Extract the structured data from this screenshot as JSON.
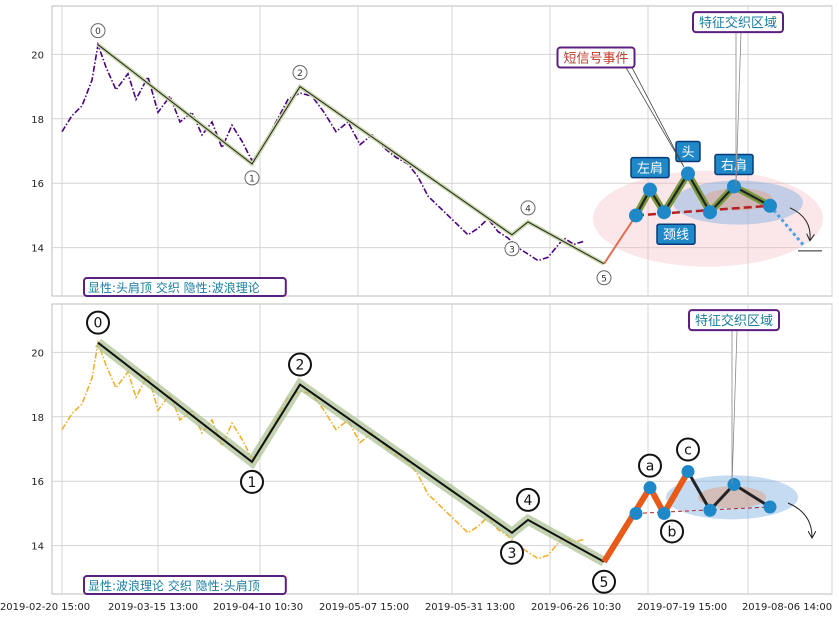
{
  "chart_data": [
    {
      "type": "line",
      "panel": "top",
      "annotation_label": "显性:头肩顶 交织 隐性:波浪理论",
      "ylim": [
        12.5,
        21.5
      ],
      "yticks": [
        14,
        16,
        18,
        20
      ],
      "grid": true,
      "price_color": "#4b0082",
      "price": [
        [
          0.5,
          17.6
        ],
        [
          1,
          18.1
        ],
        [
          1.5,
          18.4
        ],
        [
          2,
          19.2
        ],
        [
          2.3,
          20.3
        ],
        [
          2.7,
          19.6
        ],
        [
          3.2,
          18.9
        ],
        [
          3.8,
          19.4
        ],
        [
          4.2,
          18.6
        ],
        [
          4.8,
          19.3
        ],
        [
          5.3,
          18.2
        ],
        [
          5.9,
          18.7
        ],
        [
          6.4,
          17.9
        ],
        [
          7,
          18.2
        ],
        [
          7.5,
          17.5
        ],
        [
          8,
          17.9
        ],
        [
          8.5,
          17.1
        ],
        [
          9,
          17.8
        ],
        [
          9.5,
          17.3
        ],
        [
          10,
          16.7
        ],
        [
          10.5,
          17.1
        ],
        [
          11.2,
          17.9
        ],
        [
          11.8,
          18.6
        ],
        [
          12.4,
          18.8
        ],
        [
          13,
          18.7
        ],
        [
          13.6,
          18.2
        ],
        [
          14.2,
          17.6
        ],
        [
          14.8,
          17.9
        ],
        [
          15.4,
          17.2
        ],
        [
          16,
          17.5
        ],
        [
          16.6,
          17.1
        ],
        [
          17.2,
          16.8
        ],
        [
          17.8,
          16.6
        ],
        [
          18.3,
          16.2
        ],
        [
          18.8,
          15.6
        ],
        [
          19.3,
          15.3
        ],
        [
          19.8,
          15.0
        ],
        [
          20.3,
          14.7
        ],
        [
          20.8,
          14.4
        ],
        [
          21.3,
          14.6
        ],
        [
          21.8,
          14.9
        ],
        [
          22.3,
          14.5
        ],
        [
          22.8,
          14.3
        ],
        [
          23.3,
          14.0
        ],
        [
          23.8,
          13.8
        ],
        [
          24.3,
          13.6
        ],
        [
          24.8,
          13.7
        ],
        [
          25.2,
          14.0
        ],
        [
          25.6,
          14.3
        ],
        [
          26.1,
          14.1
        ],
        [
          26.6,
          14.2
        ]
      ],
      "wave_points": [
        {
          "label": "0",
          "x": 2.3,
          "y": 20.3
        },
        {
          "label": "1",
          "x": 10.0,
          "y": 16.6
        },
        {
          "label": "2",
          "x": 12.4,
          "y": 19.0
        },
        {
          "label": "3",
          "x": 23.0,
          "y": 14.4
        },
        {
          "label": "4",
          "x": 23.8,
          "y": 14.8
        },
        {
          "label": "5",
          "x": 27.6,
          "y": 13.5
        }
      ],
      "pattern_points": [
        {
          "x": 27.6,
          "y": 13.5
        },
        {
          "x": 29.2,
          "y": 15.0
        },
        {
          "x": 29.9,
          "y": 15.8
        },
        {
          "x": 30.6,
          "y": 15.1
        },
        {
          "x": 31.8,
          "y": 16.3
        },
        {
          "x": 32.9,
          "y": 15.1
        },
        {
          "x": 34.1,
          "y": 15.9
        },
        {
          "x": 35.9,
          "y": 15.3
        }
      ],
      "neckline": [
        {
          "x": 29.2,
          "y": 15.0
        },
        {
          "x": 35.9,
          "y": 15.3
        }
      ],
      "callouts": {
        "short_signal": "短信号事件",
        "left_shoulder": "左肩",
        "head": "头",
        "right_shoulder": "右肩",
        "neckline": "颈线",
        "feature_zone": "特征交织区域"
      }
    },
    {
      "type": "line",
      "panel": "bottom",
      "annotation_label": "显性:波浪理论 交织 隐性:头肩顶",
      "ylim": [
        12.5,
        21.5
      ],
      "yticks": [
        14,
        16,
        18,
        20
      ],
      "grid": true,
      "price_color": "#f0b030",
      "wave_points": [
        {
          "label": "0",
          "x": 2.3,
          "y": 20.3
        },
        {
          "label": "1",
          "x": 10.0,
          "y": 16.6
        },
        {
          "label": "2",
          "x": 12.4,
          "y": 19.0
        },
        {
          "label": "3",
          "x": 23.0,
          "y": 14.4
        },
        {
          "label": "4",
          "x": 23.8,
          "y": 14.8
        },
        {
          "label": "5",
          "x": 27.6,
          "y": 13.5
        }
      ],
      "correction_points": [
        {
          "label": "a",
          "x": 29.9,
          "y": 15.8
        },
        {
          "label": "b",
          "x": 30.6,
          "y": 15.0
        },
        {
          "label": "c",
          "x": 31.8,
          "y": 16.3
        }
      ],
      "hidden_pattern": [
        {
          "x": 29.2,
          "y": 15.0
        },
        {
          "x": 32.9,
          "y": 15.1
        },
        {
          "x": 34.1,
          "y": 15.9
        },
        {
          "x": 35.9,
          "y": 15.2
        }
      ],
      "callouts": {
        "feature_zone": "特征交织区域"
      },
      "xticks": [
        "2019-02-20 15:00",
        "2019-03-15 13:00",
        "2019-04-10 10:30",
        "2019-05-07 15:00",
        "2019-05-31 13:00",
        "2019-06-26 10:30",
        "2019-07-19 15:00",
        "2019-08-06 14:00"
      ]
    }
  ]
}
